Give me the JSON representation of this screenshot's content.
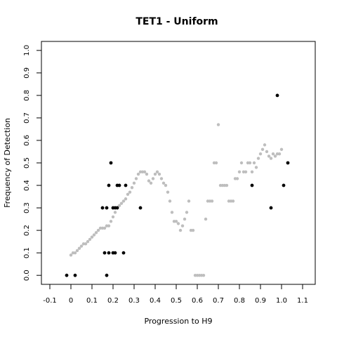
{
  "chart_data": {
    "type": "scatter",
    "title": "TET1 - Uniform",
    "xlabel": "Progression to H9",
    "ylabel": "Frequency of Detection",
    "xlim": [
      -0.14,
      1.16
    ],
    "ylim": [
      -0.04,
      1.04
    ],
    "xticks": [
      "-0.1",
      "0",
      "0.1",
      "0.2",
      "0.3",
      "0.4",
      "0.5",
      "0.6",
      "0.7",
      "0.8",
      "0.9",
      "1.0",
      "1.1"
    ],
    "yticks": [
      "0.0",
      "0.1",
      "0.2",
      "0.3",
      "0.4",
      "0.5",
      "0.6",
      "0.7",
      "0.8",
      "0.9",
      "1.0"
    ],
    "grid": false,
    "series": [
      {
        "color": "#bebebe",
        "points": [
          [
            0.0,
            0.09
          ],
          [
            0.01,
            0.1
          ],
          [
            0.02,
            0.1
          ],
          [
            0.03,
            0.11
          ],
          [
            0.04,
            0.12
          ],
          [
            0.05,
            0.13
          ],
          [
            0.06,
            0.14
          ],
          [
            0.07,
            0.14
          ],
          [
            0.08,
            0.15
          ],
          [
            0.09,
            0.16
          ],
          [
            0.1,
            0.17
          ],
          [
            0.11,
            0.18
          ],
          [
            0.12,
            0.19
          ],
          [
            0.13,
            0.2
          ],
          [
            0.14,
            0.21
          ],
          [
            0.15,
            0.21
          ],
          [
            0.16,
            0.21
          ],
          [
            0.17,
            0.22
          ],
          [
            0.18,
            0.22
          ],
          [
            0.19,
            0.24
          ],
          [
            0.2,
            0.26
          ],
          [
            0.21,
            0.28
          ],
          [
            0.22,
            0.3
          ],
          [
            0.23,
            0.31
          ],
          [
            0.24,
            0.32
          ],
          [
            0.25,
            0.33
          ],
          [
            0.26,
            0.34
          ],
          [
            0.27,
            0.36
          ],
          [
            0.28,
            0.37
          ],
          [
            0.29,
            0.39
          ],
          [
            0.3,
            0.41
          ],
          [
            0.31,
            0.43
          ],
          [
            0.32,
            0.45
          ],
          [
            0.33,
            0.46
          ],
          [
            0.34,
            0.46
          ],
          [
            0.35,
            0.46
          ],
          [
            0.36,
            0.45
          ],
          [
            0.37,
            0.42
          ],
          [
            0.38,
            0.41
          ],
          [
            0.39,
            0.43
          ],
          [
            0.4,
            0.45
          ],
          [
            0.41,
            0.46
          ],
          [
            0.42,
            0.45
          ],
          [
            0.43,
            0.43
          ],
          [
            0.44,
            0.41
          ],
          [
            0.45,
            0.4
          ],
          [
            0.46,
            0.37
          ],
          [
            0.47,
            0.33
          ],
          [
            0.48,
            0.28
          ],
          [
            0.49,
            0.24
          ],
          [
            0.5,
            0.24
          ],
          [
            0.51,
            0.23
          ],
          [
            0.52,
            0.2
          ],
          [
            0.53,
            0.22
          ],
          [
            0.54,
            0.25
          ],
          [
            0.55,
            0.28
          ],
          [
            0.56,
            0.33
          ],
          [
            0.57,
            0.2
          ],
          [
            0.58,
            0.2
          ],
          [
            0.59,
            0.0
          ],
          [
            0.6,
            0.0
          ],
          [
            0.61,
            0.0
          ],
          [
            0.62,
            0.0
          ],
          [
            0.63,
            0.0
          ],
          [
            0.64,
            0.25
          ],
          [
            0.65,
            0.33
          ],
          [
            0.66,
            0.33
          ],
          [
            0.67,
            0.33
          ],
          [
            0.68,
            0.5
          ],
          [
            0.69,
            0.5
          ],
          [
            0.7,
            0.67
          ],
          [
            0.71,
            0.4
          ],
          [
            0.72,
            0.4
          ],
          [
            0.73,
            0.4
          ],
          [
            0.74,
            0.4
          ],
          [
            0.75,
            0.33
          ],
          [
            0.76,
            0.33
          ],
          [
            0.77,
            0.33
          ],
          [
            0.78,
            0.43
          ],
          [
            0.79,
            0.43
          ],
          [
            0.8,
            0.46
          ],
          [
            0.81,
            0.5
          ],
          [
            0.82,
            0.46
          ],
          [
            0.83,
            0.46
          ],
          [
            0.84,
            0.5
          ],
          [
            0.85,
            0.5
          ],
          [
            0.86,
            0.46
          ],
          [
            0.87,
            0.5
          ],
          [
            0.88,
            0.48
          ],
          [
            0.89,
            0.52
          ],
          [
            0.9,
            0.54
          ],
          [
            0.91,
            0.56
          ],
          [
            0.92,
            0.58
          ],
          [
            0.93,
            0.55
          ],
          [
            0.94,
            0.53
          ],
          [
            0.95,
            0.52
          ],
          [
            0.96,
            0.54
          ],
          [
            0.97,
            0.53
          ],
          [
            0.98,
            0.54
          ],
          [
            0.99,
            0.54
          ],
          [
            1.0,
            0.56
          ]
        ]
      },
      {
        "color": "#000000",
        "points": [
          [
            -0.02,
            0.0
          ],
          [
            0.02,
            0.0
          ],
          [
            0.15,
            0.3
          ],
          [
            0.16,
            0.1
          ],
          [
            0.17,
            0.3
          ],
          [
            0.17,
            0.0
          ],
          [
            0.18,
            0.4
          ],
          [
            0.19,
            0.5
          ],
          [
            0.18,
            0.1
          ],
          [
            0.2,
            0.1
          ],
          [
            0.21,
            0.1
          ],
          [
            0.2,
            0.3
          ],
          [
            0.21,
            0.3
          ],
          [
            0.22,
            0.3
          ],
          [
            0.22,
            0.4
          ],
          [
            0.23,
            0.4
          ],
          [
            0.25,
            0.1
          ],
          [
            0.26,
            0.4
          ],
          [
            0.33,
            0.3
          ],
          [
            0.86,
            0.4
          ],
          [
            0.95,
            0.3
          ],
          [
            0.98,
            0.8
          ],
          [
            1.01,
            0.4
          ],
          [
            1.03,
            0.5
          ]
        ]
      }
    ]
  }
}
